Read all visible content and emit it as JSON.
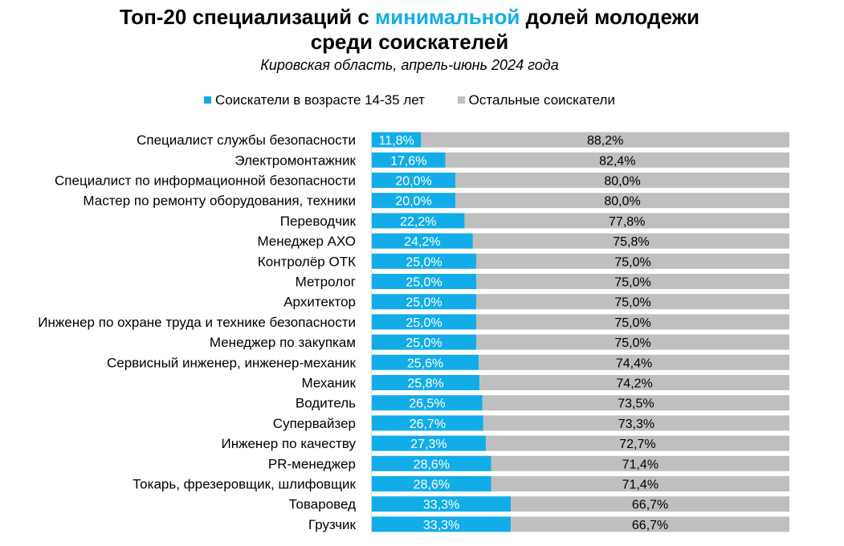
{
  "header": {
    "title_part1": "Топ-20 специализаций с ",
    "title_highlight": "минимальной",
    "title_part2": " долей молодежи",
    "title_line2": "среди соискателей",
    "subtitle": "Кировская область, апрель-июнь 2024 года"
  },
  "colors": {
    "youth": "#12ade8",
    "others": "#bfbfbf",
    "highlight": "#12ade8"
  },
  "chart_data": {
    "type": "bar",
    "orientation": "horizontal",
    "stacked": true,
    "percent_stacked": true,
    "categories": [
      "Специалист службы безопасности",
      "Электромонтажник",
      "Специалист по информационной безопасности",
      "Мастер по ремонту оборудования, техники",
      "Переводчик",
      "Менеджер АХО",
      "Контролёр ОТК",
      "Метролог",
      "Архитектор",
      "Инженер по охране труда и технике безопасности",
      "Менеджер по закупкам",
      "Сервисный инженер, инженер-механик",
      "Механик",
      "Водитель",
      "Супервайзер",
      "Инженер по качеству",
      "PR-менеджер",
      "Токарь, фрезеровщик, шлифовщик",
      "Товаровед",
      "Грузчик"
    ],
    "series": [
      {
        "name": "Соискатели в возрасте 14-35 лет",
        "color": "#12ade8",
        "values": [
          11.8,
          17.6,
          20.0,
          20.0,
          22.2,
          24.2,
          25.0,
          25.0,
          25.0,
          25.0,
          25.0,
          25.6,
          25.8,
          26.5,
          26.7,
          27.3,
          28.6,
          28.6,
          33.3,
          33.3
        ],
        "labels": [
          "11,8%",
          "17,6%",
          "20,0%",
          "20,0%",
          "22,2%",
          "24,2%",
          "25,0%",
          "25,0%",
          "25,0%",
          "25,0%",
          "25,0%",
          "25,6%",
          "25,8%",
          "26,5%",
          "26,7%",
          "27,3%",
          "28,6%",
          "28,6%",
          "33,3%",
          "33,3%"
        ]
      },
      {
        "name": "Остальные соискатели",
        "color": "#bfbfbf",
        "values": [
          88.2,
          82.4,
          80.0,
          80.0,
          77.8,
          75.8,
          75.0,
          75.0,
          75.0,
          75.0,
          75.0,
          74.4,
          74.2,
          73.5,
          73.3,
          72.7,
          71.4,
          71.4,
          66.7,
          66.7
        ],
        "labels": [
          "88,2%",
          "82,4%",
          "80,0%",
          "80,0%",
          "77,8%",
          "75,8%",
          "75,0%",
          "75,0%",
          "75,0%",
          "75,0%",
          "75,0%",
          "74,4%",
          "74,2%",
          "73,5%",
          "73,3%",
          "72,7%",
          "71,4%",
          "71,4%",
          "66,7%",
          "66,7%"
        ]
      }
    ],
    "xlim": [
      0,
      100
    ],
    "legend_position": "top",
    "grid": false
  }
}
